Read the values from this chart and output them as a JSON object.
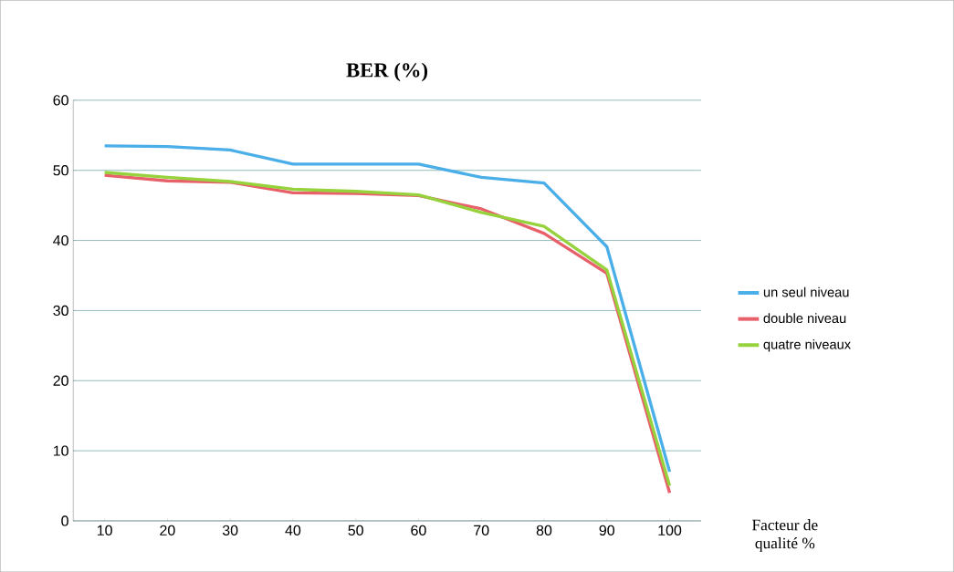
{
  "chart_data": {
    "type": "line",
    "title": "BER (%)",
    "xlabel": "Facteur de qualité %",
    "categories": [
      "10",
      "20",
      "30",
      "40",
      "50",
      "60",
      "70",
      "80",
      "90",
      "100"
    ],
    "series": [
      {
        "name": "un seul niveau",
        "color": "#4aaee8",
        "values": [
          53.5,
          53.4,
          52.9,
          50.9,
          50.9,
          50.9,
          49.0,
          48.2,
          39.1,
          7.0
        ]
      },
      {
        "name": "double niveau",
        "color": "#e8606a",
        "values": [
          49.3,
          48.5,
          48.3,
          46.8,
          46.7,
          46.4,
          44.5,
          41.0,
          35.3,
          4.0
        ]
      },
      {
        "name": "quatre niveaux",
        "color": "#96d23c",
        "values": [
          49.7,
          49.0,
          48.4,
          47.3,
          47.0,
          46.5,
          44.0,
          42.0,
          35.8,
          5.0
        ]
      }
    ],
    "ylim": [
      0,
      60
    ],
    "yticks": [
      0,
      10,
      20,
      30,
      40,
      50,
      60
    ],
    "grid": "y",
    "legend": "right"
  }
}
